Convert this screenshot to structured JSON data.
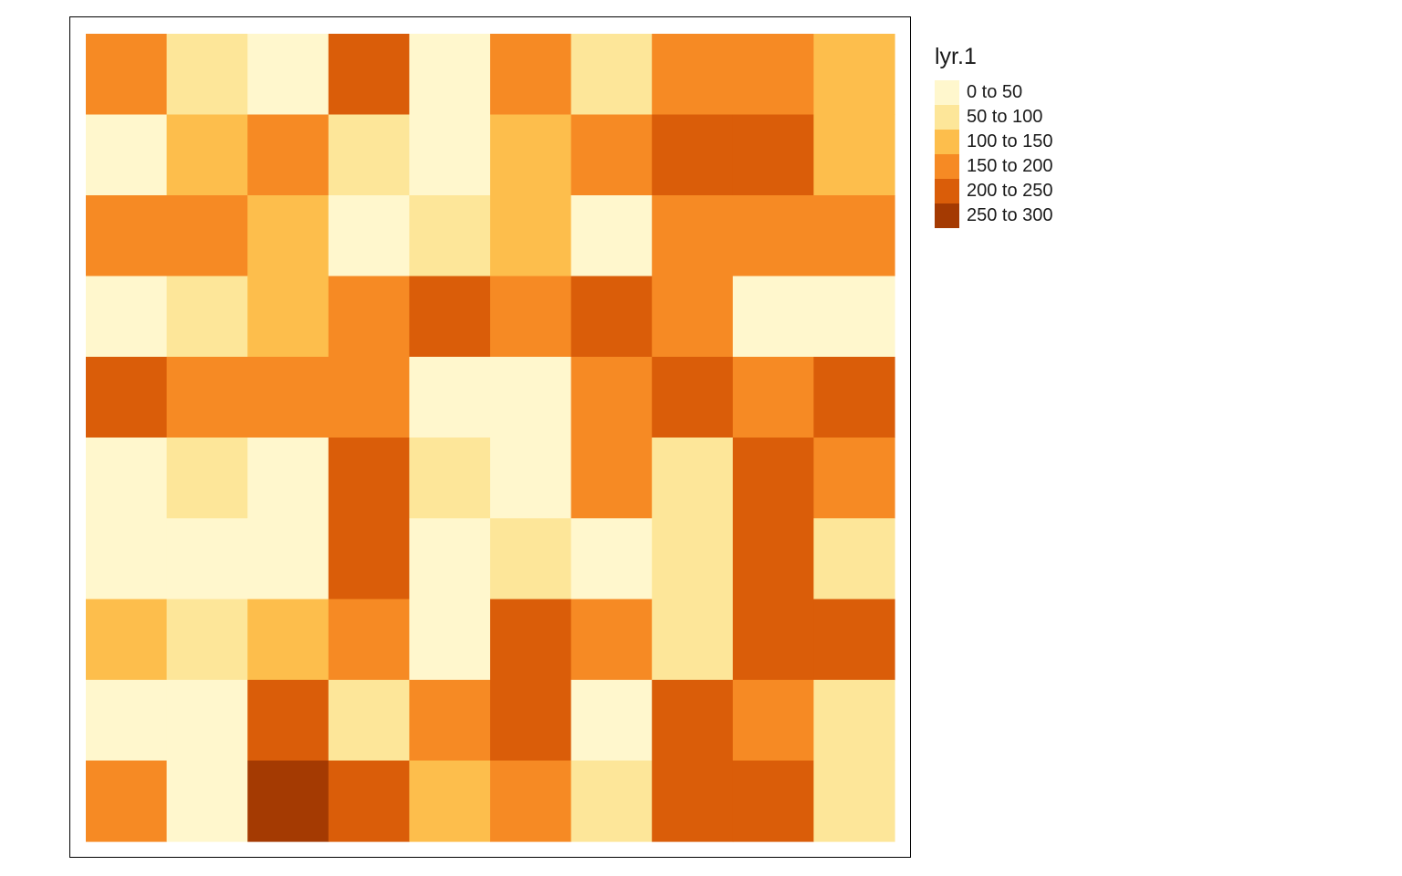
{
  "chart_data": {
    "type": "heatmap",
    "title": "",
    "xlabel": "",
    "ylabel": "",
    "legend_title": "lyr.1",
    "legend_position": "right",
    "grid": false,
    "n_rows": 10,
    "n_cols": 10,
    "classes": [
      {
        "label": "0 to 50",
        "color": "#FFF7CD"
      },
      {
        "label": "50 to 100",
        "color": "#FDE699"
      },
      {
        "label": "100 to 150",
        "color": "#FDBE4C"
      },
      {
        "label": "150 to 200",
        "color": "#F68A24"
      },
      {
        "label": "200 to 250",
        "color": "#DA5D09"
      },
      {
        "label": "250 to 300",
        "color": "#A43A02"
      }
    ],
    "cells": [
      [
        3,
        1,
        0,
        4,
        0,
        3,
        1,
        3,
        3,
        2
      ],
      [
        0,
        2,
        3,
        1,
        0,
        2,
        3,
        4,
        4,
        2
      ],
      [
        3,
        3,
        2,
        0,
        1,
        2,
        0,
        3,
        3,
        3
      ],
      [
        0,
        1,
        2,
        3,
        4,
        3,
        4,
        3,
        0,
        0
      ],
      [
        4,
        3,
        3,
        3,
        0,
        0,
        3,
        4,
        3,
        4
      ],
      [
        0,
        1,
        0,
        4,
        1,
        0,
        3,
        1,
        4,
        3
      ],
      [
        0,
        0,
        0,
        4,
        0,
        1,
        0,
        1,
        4,
        1
      ],
      [
        2,
        1,
        2,
        3,
        0,
        4,
        3,
        1,
        4,
        4
      ],
      [
        0,
        0,
        4,
        1,
        3,
        4,
        0,
        4,
        3,
        1
      ],
      [
        3,
        0,
        5,
        4,
        2,
        3,
        1,
        4,
        4,
        1
      ]
    ]
  }
}
